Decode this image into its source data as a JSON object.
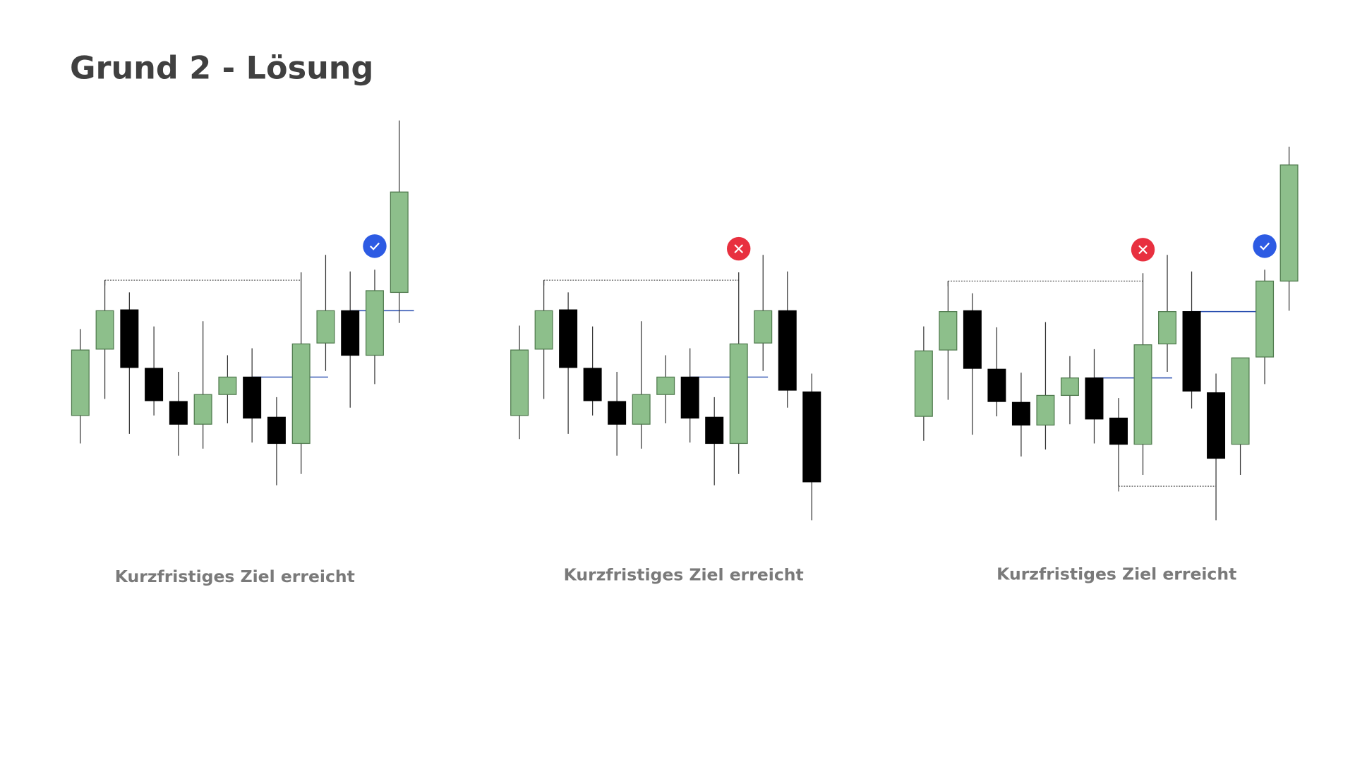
{
  "title": "Grund 2 - Lösung",
  "chart_data": [
    {
      "type": "candlestick",
      "caption": "Kurzfristiges Ziel erreicht",
      "ylim": [
        0,
        500
      ],
      "up_color": "#8dbf8b",
      "down_color": "#000000",
      "open": [
        144,
        220,
        265,
        198,
        160,
        134,
        168,
        188,
        142,
        112,
        227,
        264,
        213,
        285
      ],
      "high": [
        243,
        299,
        285,
        246,
        194,
        252,
        213,
        221,
        165,
        308,
        328,
        309,
        311,
        482
      ],
      "low": [
        112,
        163,
        123,
        144,
        98,
        106,
        135,
        113,
        64,
        77,
        195,
        153,
        180,
        250
      ],
      "close": [
        219,
        264,
        199,
        161,
        134,
        168,
        188,
        141,
        112,
        226,
        264,
        213,
        287,
        400
      ]
    },
    {
      "type": "candlestick",
      "caption": "Kurzfristiges Ziel erreicht",
      "ylim": [
        0,
        500
      ],
      "up_color": "#8dbf8b",
      "down_color": "#000000",
      "open": [
        144,
        220,
        265,
        198,
        160,
        134,
        168,
        188,
        142,
        112,
        227,
        264,
        171
      ],
      "high": [
        247,
        299,
        285,
        246,
        194,
        252,
        213,
        221,
        165,
        308,
        328,
        309,
        192
      ],
      "low": [
        117,
        163,
        123,
        144,
        98,
        106,
        135,
        113,
        64,
        77,
        195,
        153,
        24
      ],
      "close": [
        219,
        264,
        199,
        161,
        134,
        168,
        188,
        141,
        112,
        226,
        264,
        173,
        68
      ]
    },
    {
      "type": "candlestick",
      "caption": "Kurzfristiges Ziel erreicht",
      "ylim": [
        0,
        500
      ],
      "up_color": "#8dbf8b",
      "down_color": "#000000",
      "open": [
        143,
        219,
        264,
        197,
        159,
        133,
        167,
        187,
        141,
        111,
        226,
        263,
        170,
        111,
        211,
        298
      ],
      "high": [
        246,
        298,
        284,
        245,
        193,
        251,
        212,
        220,
        164,
        307,
        328,
        309,
        192,
        210,
        311,
        452
      ],
      "low": [
        115,
        162,
        122,
        143,
        97,
        105,
        134,
        112,
        63,
        76,
        194,
        152,
        24,
        76,
        180,
        264
      ],
      "close": [
        218,
        263,
        198,
        160,
        133,
        167,
        187,
        140,
        111,
        225,
        263,
        172,
        95,
        210,
        298,
        431
      ]
    }
  ]
}
